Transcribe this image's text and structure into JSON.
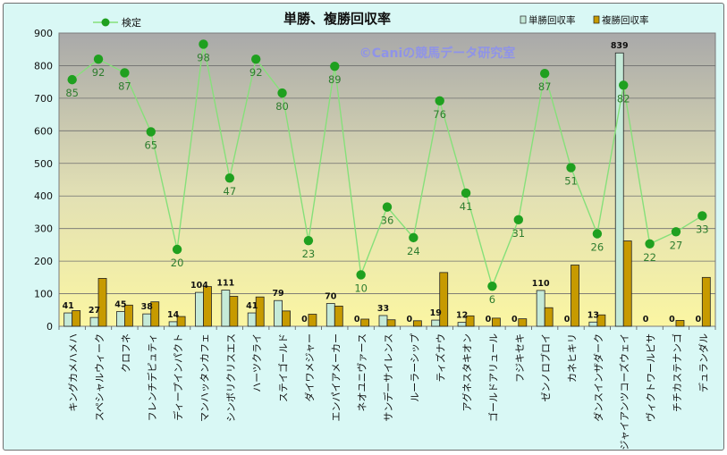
{
  "chart_data": {
    "type": "bar",
    "title": "単勝、複勝回収率",
    "watermark": "©Caniの競馬データ研究室",
    "categories": [
      "キングカメハメハ",
      "スペシャルウィーク",
      "クロフネ",
      "フレンチデピュティ",
      "ディープインパクト",
      "マンハッタンカフェ",
      "シンボリクリスエス",
      "ハーツクライ",
      "ステイゴールド",
      "ダイワメジャー",
      "エンパイアメーカー",
      "ネオユニヴァース",
      "サンデーサイレンス",
      "ルーラーシップ",
      "ティズナウ",
      "アグネスタキオン",
      "ゴールドアリュール",
      "フジキセキ",
      "ゼンノロブロイ",
      "カネヒキリ",
      "ダンスインザダーク",
      "ジャイアンツコーズウェイ",
      "ヴィクトワールピサ",
      "チチカステナンゴ",
      "デュランダル"
    ],
    "ylim": [
      0,
      900
    ],
    "yticks": [
      "0",
      "100",
      "200",
      "300",
      "400",
      "500",
      "600",
      "700",
      "800",
      "900"
    ],
    "grid": true,
    "legend_position": "top",
    "series": [
      {
        "name": "単勝回収率",
        "kind": "bar",
        "color": "#c5ead8",
        "values": [
          41,
          27,
          45,
          38,
          14,
          104,
          111,
          41,
          79,
          0,
          70,
          0,
          33,
          0,
          19,
          12,
          0,
          0,
          110,
          0,
          13,
          839,
          0,
          0,
          0
        ],
        "labels": [
          "41",
          "27",
          "45",
          "38",
          "14",
          "104",
          "111",
          "41",
          "79",
          "0",
          "70",
          "0",
          "33",
          "0",
          "19",
          "12",
          "0",
          "0",
          "110",
          "0",
          "13",
          "839",
          "0",
          "0",
          "0"
        ]
      },
      {
        "name": "複勝回収率",
        "kind": "bar",
        "color": "#c79a00",
        "values": [
          48,
          147,
          65,
          75,
          30,
          122,
          92,
          90,
          47,
          37,
          62,
          22,
          20,
          17,
          165,
          32,
          25,
          23,
          57,
          188,
          35,
          262,
          0,
          18,
          150
        ]
      },
      {
        "name": "検定",
        "kind": "line",
        "color": "#86e07a",
        "marker_color": "#1fa01f",
        "label_color": "#2f7d2f",
        "values": [
          757,
          820,
          778,
          597,
          236,
          866,
          455,
          820,
          716,
          263,
          798,
          158,
          366,
          272,
          692,
          409,
          123,
          327,
          776,
          487,
          284,
          740,
          253,
          290,
          339
        ],
        "labels": [
          "85",
          "92",
          "87",
          "65",
          "20",
          "98",
          "47",
          "92",
          "80",
          "23",
          "89",
          "10",
          "36",
          "24",
          "76",
          "41",
          "6",
          "31",
          "87",
          "51",
          "26",
          "82",
          "22",
          "27",
          "33"
        ]
      }
    ]
  }
}
